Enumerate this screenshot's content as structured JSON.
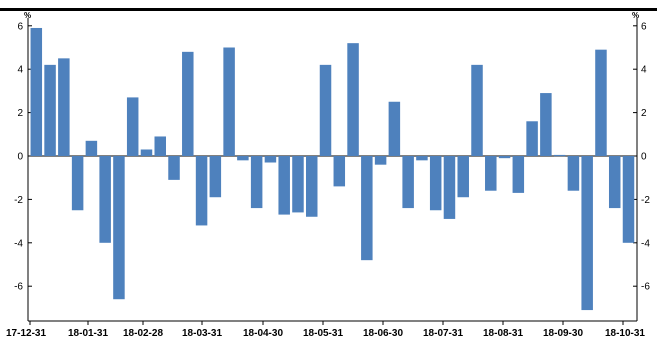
{
  "chart_data": {
    "type": "bar",
    "title": "",
    "xlabel": "",
    "ylabel": "",
    "y_unit": "%",
    "ylim": [
      -7.5,
      6.2
    ],
    "yticks": [
      -6,
      -4,
      -2,
      0,
      2,
      4,
      6
    ],
    "grid": false,
    "bar_color": "#4e81bd",
    "x_tick_labels": [
      "17-12-31",
      "18-01-31",
      "18-02-28",
      "18-03-31",
      "18-04-30",
      "18-05-31",
      "18-06-30",
      "18-07-31",
      "18-08-31",
      "18-09-30",
      "18-10-31"
    ],
    "values": [
      5.9,
      4.2,
      4.5,
      -2.5,
      0.7,
      -4.0,
      -6.6,
      2.7,
      0.3,
      0.9,
      -1.1,
      4.8,
      -3.2,
      -1.9,
      5.0,
      -0.2,
      -2.4,
      -0.3,
      -2.7,
      -2.6,
      -2.8,
      4.2,
      -1.4,
      5.2,
      -4.8,
      -0.4,
      2.5,
      -2.4,
      -0.2,
      -2.5,
      -2.9,
      -1.9,
      4.2,
      -1.6,
      -0.1,
      -1.7,
      1.6,
      2.9,
      0.05,
      -1.6,
      -7.1,
      4.9,
      -2.4,
      -4.0
    ]
  }
}
